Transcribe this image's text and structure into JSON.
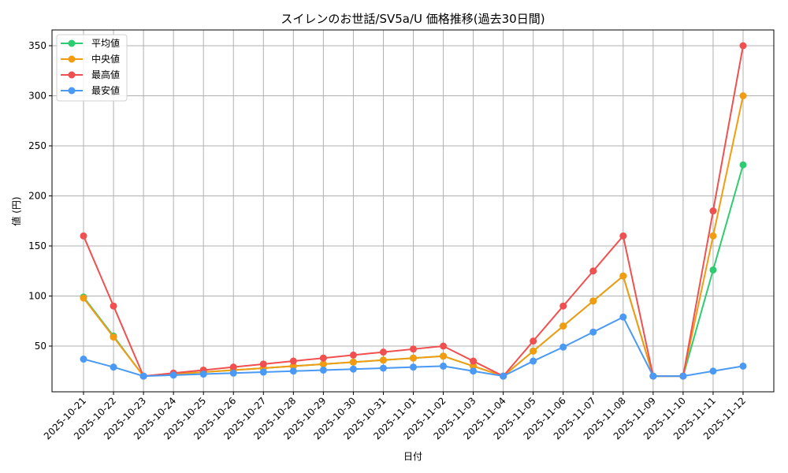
{
  "chart_data": {
    "type": "line",
    "title": "スイレンのお世話/SV5a/U 価格推移(過去30日間)",
    "xlabel": "日付",
    "ylabel": "値 (円)",
    "ylim": [
      5,
      365
    ],
    "yticks": [
      50,
      100,
      150,
      200,
      250,
      300,
      350
    ],
    "grid": true,
    "legend_position": "upper left",
    "categories": [
      "2025-10-21",
      "2025-10-22",
      "2025-10-23",
      "2025-10-24",
      "2025-10-25",
      "2025-10-26",
      "2025-10-27",
      "2025-10-28",
      "2025-10-29",
      "2025-10-30",
      "2025-10-31",
      "2025-11-01",
      "2025-11-02",
      "2025-11-03",
      "2025-11-04",
      "2025-11-05",
      "2025-11-06",
      "2025-11-07",
      "2025-11-08",
      "2025-11-09",
      "2025-11-10",
      "2025-11-11",
      "2025-11-12"
    ],
    "series": [
      {
        "name": "平均値",
        "color": "#2ecc71",
        "values": [
          99,
          60,
          20,
          22,
          24,
          26,
          28,
          30,
          32,
          34,
          36,
          38,
          40,
          30,
          20,
          45,
          70,
          95,
          120,
          20,
          20,
          126,
          231
        ]
      },
      {
        "name": "中央値",
        "color": "#f39c12",
        "values": [
          98,
          59,
          20,
          22,
          24,
          26,
          28,
          30,
          32,
          34,
          36,
          38,
          40,
          30,
          20,
          45,
          70,
          95,
          120,
          20,
          20,
          160,
          300
        ]
      },
      {
        "name": "最高値",
        "color": "#f05050",
        "values": [
          160,
          90,
          20,
          23,
          26,
          29,
          32,
          35,
          38,
          41,
          44,
          47,
          50,
          35,
          20,
          55,
          90,
          125,
          160,
          20,
          20,
          185,
          350
        ]
      },
      {
        "name": "最安値",
        "color": "#4a9af5",
        "values": [
          37,
          29,
          20,
          21,
          22,
          23,
          24,
          25,
          26,
          27,
          28,
          29,
          30,
          25,
          20,
          35,
          49,
          64,
          79,
          20,
          20,
          25,
          30
        ]
      }
    ]
  }
}
